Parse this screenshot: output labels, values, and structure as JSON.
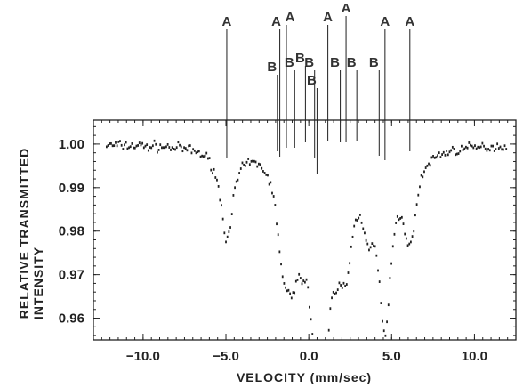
{
  "chart_data": {
    "type": "scatter",
    "xlabel": "VELOCITY (mm/sec)",
    "ylabel_line1": "RELATIVE TRANSMITTED",
    "ylabel_line2": "INTENSITY",
    "xlim": [
      -13.0,
      12.5
    ],
    "ylim": [
      0.955,
      1.0055
    ],
    "x_ticks": [
      -10.0,
      -5.0,
      0.0,
      5.0,
      10.0
    ],
    "x_tick_labels": [
      "−10.0",
      "−5.0",
      "0.0",
      "5.0",
      "10.0"
    ],
    "y_ticks": [
      1.0,
      0.99,
      0.98,
      0.97,
      0.96
    ],
    "y_tick_labels": [
      "1.00",
      "0.99",
      "0.98",
      "0.97",
      "0.96"
    ],
    "series": [
      {
        "baseline": 1.0,
        "absorption_lines": [
          {
            "x": -4.95,
            "depth": 0.0205,
            "width": 0.45
          },
          {
            "x": -1.55,
            "depth": 0.0205,
            "width": 0.45
          },
          {
            "x": -1.15,
            "depth": 0.0115,
            "width": 0.35
          },
          {
            "x": -0.85,
            "depth": 0.012,
            "width": 0.3
          },
          {
            "x": -0.35,
            "depth": 0.012,
            "width": 0.3
          },
          {
            "x": 0.15,
            "depth": 0.012,
            "width": 0.3
          },
          {
            "x": 0.5,
            "depth": 0.024,
            "width": 0.4
          },
          {
            "x": 0.95,
            "depth": 0.035,
            "width": 0.4
          },
          {
            "x": 1.65,
            "depth": 0.0125,
            "width": 0.35
          },
          {
            "x": 2.25,
            "depth": 0.0215,
            "width": 0.45
          },
          {
            "x": 3.6,
            "depth": 0.012,
            "width": 0.45
          },
          {
            "x": 4.6,
            "depth": 0.0385,
            "width": 0.45
          },
          {
            "x": 6.1,
            "depth": 0.0195,
            "width": 0.45
          }
        ],
        "x_step": 0.09,
        "noise": 0.0007
      }
    ],
    "line_markers": [
      {
        "label": "A",
        "x": -4.95
      },
      {
        "label": "A",
        "x": -1.75
      },
      {
        "label": "A",
        "x": -1.35
      },
      {
        "label": "A",
        "x": 1.15
      },
      {
        "label": "A",
        "x": 2.25
      },
      {
        "label": "A",
        "x": 4.6
      },
      {
        "label": "A",
        "x": 6.1
      },
      {
        "label": "B",
        "x": -1.9
      },
      {
        "label": "B",
        "x": -0.85
      },
      {
        "label": "B",
        "x": -0.2
      },
      {
        "label": "B",
        "x": 0.35
      },
      {
        "label": "B",
        "x": 0.5
      },
      {
        "label": "B",
        "x": 1.9
      },
      {
        "label": "B",
        "x": 2.9
      },
      {
        "label": "B",
        "x": 4.25
      }
    ]
  }
}
